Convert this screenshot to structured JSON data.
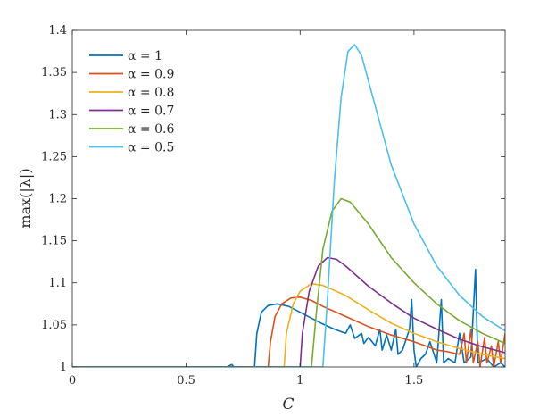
{
  "chart_data": {
    "type": "line",
    "xlabel": "C",
    "ylabel": "max(|λ|)",
    "xlim": [
      0,
      1.9
    ],
    "ylim": [
      1,
      1.4
    ],
    "xticks": [
      "0",
      "0.5",
      "1",
      "1.5"
    ],
    "xtick_values": [
      0,
      0.5,
      1,
      1.5
    ],
    "yticks": [
      "1",
      "1.05",
      "1.1",
      "1.15",
      "1.2",
      "1.25",
      "1.3",
      "1.35",
      "1.4"
    ],
    "ytick_values": [
      1,
      1.05,
      1.1,
      1.15,
      1.2,
      1.25,
      1.3,
      1.35,
      1.4
    ],
    "grid": false,
    "box": true,
    "legend_position": "top-left",
    "series": [
      {
        "name": "α = 1",
        "color": "#0072BD",
        "points": [
          [
            0,
            1.0
          ],
          [
            0.6,
            1.0
          ],
          [
            0.68,
            1.0
          ],
          [
            0.7,
            1.003
          ],
          [
            0.71,
            1.0
          ],
          [
            0.8,
            1.0
          ],
          [
            0.81,
            1.04
          ],
          [
            0.83,
            1.065
          ],
          [
            0.86,
            1.073
          ],
          [
            0.9,
            1.075
          ],
          [
            0.95,
            1.072
          ],
          [
            1.0,
            1.065
          ],
          [
            1.05,
            1.058
          ],
          [
            1.1,
            1.051
          ],
          [
            1.15,
            1.045
          ],
          [
            1.2,
            1.04
          ],
          [
            1.22,
            1.05
          ],
          [
            1.24,
            1.034
          ],
          [
            1.27,
            1.04
          ],
          [
            1.28,
            1.028
          ],
          [
            1.3,
            1.035
          ],
          [
            1.31,
            1.032
          ],
          [
            1.33,
            1.025
          ],
          [
            1.35,
            1.045
          ],
          [
            1.36,
            1.02
          ],
          [
            1.38,
            1.038
          ],
          [
            1.4,
            1.02
          ],
          [
            1.42,
            1.045
          ],
          [
            1.43,
            1.015
          ],
          [
            1.45,
            1.02
          ],
          [
            1.48,
            1.045
          ],
          [
            1.49,
            1.08
          ],
          [
            1.5,
            1.02
          ],
          [
            1.51,
            1.0
          ],
          [
            1.53,
            1.01
          ],
          [
            1.55,
            1.015
          ],
          [
            1.57,
            1.03
          ],
          [
            1.6,
            1.005
          ],
          [
            1.62,
            1.08
          ],
          [
            1.63,
            1.005
          ],
          [
            1.65,
            1.01
          ],
          [
            1.68,
            1.005
          ],
          [
            1.7,
            1.04
          ],
          [
            1.72,
            1.005
          ],
          [
            1.75,
            1.012
          ],
          [
            1.77,
            1.116
          ],
          [
            1.78,
            1.005
          ],
          [
            1.82,
            1.01
          ],
          [
            1.85,
            1.0
          ],
          [
            1.88,
            1.005
          ],
          [
            1.9,
            1.0
          ]
        ]
      },
      {
        "name": "α = 0.9",
        "color": "#D95319",
        "points": [
          [
            0,
            1.0
          ],
          [
            0.86,
            1.0
          ],
          [
            0.87,
            1.03
          ],
          [
            0.89,
            1.06
          ],
          [
            0.92,
            1.075
          ],
          [
            0.96,
            1.082
          ],
          [
            1.0,
            1.083
          ],
          [
            1.05,
            1.079
          ],
          [
            1.1,
            1.072
          ],
          [
            1.2,
            1.06
          ],
          [
            1.3,
            1.048
          ],
          [
            1.4,
            1.038
          ],
          [
            1.5,
            1.03
          ],
          [
            1.55,
            1.025
          ],
          [
            1.6,
            1.02
          ],
          [
            1.65,
            1.018
          ],
          [
            1.7,
            1.015
          ],
          [
            1.72,
            1.04
          ],
          [
            1.73,
            1.005
          ],
          [
            1.75,
            1.045
          ],
          [
            1.76,
            1.005
          ],
          [
            1.78,
            1.03
          ],
          [
            1.79,
            1.0
          ],
          [
            1.81,
            1.035
          ],
          [
            1.82,
            1.005
          ],
          [
            1.84,
            1.025
          ],
          [
            1.85,
            1.0
          ],
          [
            1.87,
            1.03
          ],
          [
            1.88,
            1.005
          ],
          [
            1.9,
            1.04
          ]
        ]
      },
      {
        "name": "α = 0.8",
        "color": "#EDB120",
        "points": [
          [
            0,
            1.0
          ],
          [
            0.93,
            1.0
          ],
          [
            0.94,
            1.04
          ],
          [
            0.97,
            1.075
          ],
          [
            1.0,
            1.09
          ],
          [
            1.05,
            1.099
          ],
          [
            1.1,
            1.097
          ],
          [
            1.2,
            1.085
          ],
          [
            1.3,
            1.068
          ],
          [
            1.4,
            1.052
          ],
          [
            1.5,
            1.04
          ],
          [
            1.6,
            1.03
          ],
          [
            1.7,
            1.022
          ],
          [
            1.8,
            1.015
          ],
          [
            1.9,
            1.01
          ]
        ]
      },
      {
        "name": "α = 0.7",
        "color": "#7E2F8E",
        "points": [
          [
            0,
            1.0
          ],
          [
            1.0,
            1.0
          ],
          [
            1.01,
            1.04
          ],
          [
            1.04,
            1.09
          ],
          [
            1.08,
            1.12
          ],
          [
            1.12,
            1.13
          ],
          [
            1.16,
            1.128
          ],
          [
            1.2,
            1.12
          ],
          [
            1.3,
            1.096
          ],
          [
            1.4,
            1.076
          ],
          [
            1.5,
            1.058
          ],
          [
            1.6,
            1.045
          ],
          [
            1.7,
            1.033
          ],
          [
            1.8,
            1.024
          ],
          [
            1.9,
            1.017
          ]
        ]
      },
      {
        "name": "α = 0.6",
        "color": "#77AC30",
        "points": [
          [
            0,
            1.0
          ],
          [
            1.05,
            1.0
          ],
          [
            1.07,
            1.06
          ],
          [
            1.1,
            1.14
          ],
          [
            1.14,
            1.185
          ],
          [
            1.18,
            1.2
          ],
          [
            1.22,
            1.196
          ],
          [
            1.3,
            1.17
          ],
          [
            1.4,
            1.13
          ],
          [
            1.5,
            1.1
          ],
          [
            1.6,
            1.075
          ],
          [
            1.7,
            1.055
          ],
          [
            1.8,
            1.04
          ],
          [
            1.9,
            1.028
          ]
        ]
      },
      {
        "name": "α = 0.5",
        "color": "#4DBEEE",
        "points": [
          [
            0,
            1.0
          ],
          [
            1.1,
            1.0
          ],
          [
            1.12,
            1.08
          ],
          [
            1.15,
            1.22
          ],
          [
            1.18,
            1.32
          ],
          [
            1.21,
            1.375
          ],
          [
            1.24,
            1.383
          ],
          [
            1.27,
            1.37
          ],
          [
            1.3,
            1.34
          ],
          [
            1.35,
            1.29
          ],
          [
            1.4,
            1.24
          ],
          [
            1.5,
            1.17
          ],
          [
            1.6,
            1.12
          ],
          [
            1.7,
            1.085
          ],
          [
            1.8,
            1.06
          ],
          [
            1.9,
            1.043
          ]
        ]
      }
    ]
  }
}
